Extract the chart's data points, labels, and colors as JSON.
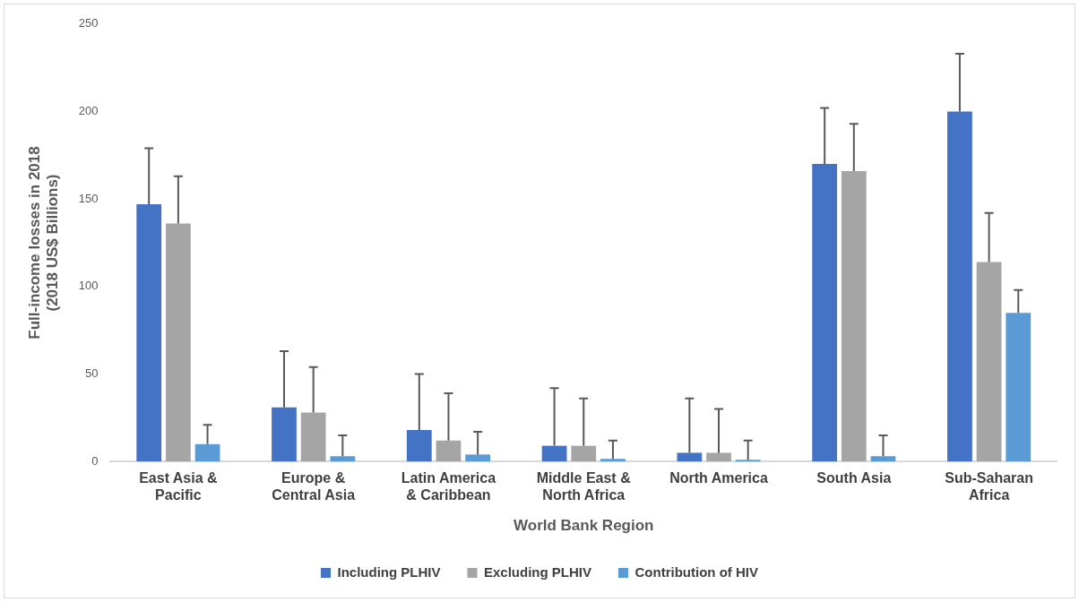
{
  "chart_data": {
    "type": "bar",
    "xlabel": "World Bank Region",
    "ylabel": "Full-income losses in 2018\n(2018 US$ Billions)",
    "categories": [
      "East Asia &\nPacific",
      "Europe &\nCentral Asia",
      "Latin America\n& Caribbean",
      "Middle East &\nNorth Africa",
      "North America",
      "South Asia",
      "Sub-Saharan\nAfrica"
    ],
    "series": [
      {
        "name": "Including PLHIV",
        "color": "#4472c4",
        "values": [
          147,
          31,
          18,
          9,
          5,
          170,
          200
        ],
        "errors": [
          [
            147,
            179
          ],
          [
            31,
            63
          ],
          [
            18,
            50
          ],
          [
            9,
            42
          ],
          [
            5,
            36
          ],
          [
            170,
            202
          ],
          [
            200,
            233
          ]
        ]
      },
      {
        "name": "Excluding PLHIV",
        "color": "#a5a5a5",
        "values": [
          136,
          28,
          12,
          9,
          5,
          166,
          114
        ],
        "errors": [
          [
            136,
            163
          ],
          [
            28,
            54
          ],
          [
            12,
            39
          ],
          [
            9,
            36
          ],
          [
            5,
            30
          ],
          [
            166,
            193
          ],
          [
            114,
            142
          ]
        ]
      },
      {
        "name": "Contribution of HIV",
        "color": "#5b9bd5",
        "values": [
          10,
          3,
          4,
          1.5,
          1,
          3,
          85
        ],
        "errors": [
          [
            10,
            21
          ],
          [
            3,
            15
          ],
          [
            4,
            17
          ],
          [
            1.5,
            12
          ],
          [
            1,
            12
          ],
          [
            3,
            15
          ],
          [
            85,
            98
          ]
        ]
      }
    ],
    "ylim": [
      0,
      250
    ],
    "yticks": [
      0,
      50,
      100,
      150,
      200,
      250
    ],
    "grid": false,
    "legend": "bottom"
  }
}
